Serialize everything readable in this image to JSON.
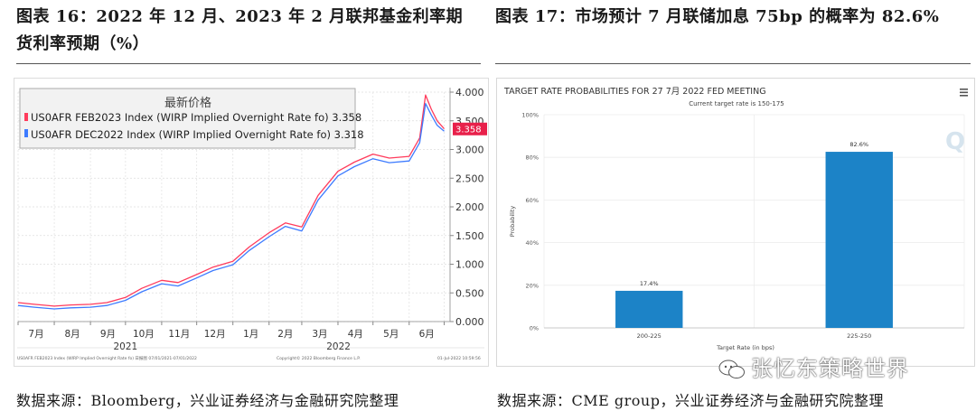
{
  "left_title": "图表 16：2022 年 12 月、2023 年 2 月联邦基金利率期货利率预期（%）",
  "right_title": "图表 17：市场预计 7 月联储加息 75bp 的概率为 82.6%",
  "left_source": "数据来源：Bloomberg，兴业证券经济与金融研究院整理",
  "right_source": "数据来源：CME group，兴业证券经济与金融研究院整理",
  "watermark": "张忆东策略世界",
  "left_chart_footer": {
    "left_text": "US0AFR FEB2023 Index (WIRP Implied Overnight Rate fo) 日报图 07/01/2021-07/01/2022",
    "middle_text": "Copyright© 2022 Bloomberg Finance L.P.",
    "right_text": "01-Jul-2022 10:59:56"
  },
  "chart_data": [
    {
      "type": "line",
      "legend_title": "最新价格",
      "legend_position": "top-left",
      "y_axis_side": "right",
      "ylim": [
        0,
        4.0
      ],
      "y_ticks": [
        "0.000",
        "0.500",
        "1.000",
        "1.500",
        "2.000",
        "2.500",
        "3.000",
        "3.500",
        "4.000"
      ],
      "x_month_labels": [
        "7月",
        "8月",
        "9月",
        "10月",
        "11月",
        "12月",
        "1月",
        "2月",
        "3月",
        "4月",
        "5月",
        "6月"
      ],
      "x_year_labels": [
        "2021",
        "2022"
      ],
      "grid": true,
      "last_value_marker": "3.358",
      "x_dates": [
        "2021-07-01",
        "2021-07-15",
        "2021-08-01",
        "2021-08-15",
        "2021-09-01",
        "2021-09-15",
        "2021-10-01",
        "2021-10-15",
        "2021-11-01",
        "2021-11-15",
        "2021-12-01",
        "2021-12-15",
        "2022-01-01",
        "2022-01-15",
        "2022-02-01",
        "2022-02-15",
        "2022-03-01",
        "2022-03-15",
        "2022-04-01",
        "2022-04-15",
        "2022-05-01",
        "2022-05-15",
        "2022-06-01",
        "2022-06-10",
        "2022-06-15",
        "2022-06-20",
        "2022-06-25",
        "2022-07-01"
      ],
      "series": [
        {
          "name": "US0AFR FEB2023 Index (WIRP Implied Overnight Rate fo) 3.358",
          "color": "#ff3b5c",
          "values": [
            0.33,
            0.3,
            0.27,
            0.29,
            0.3,
            0.33,
            0.42,
            0.58,
            0.72,
            0.68,
            0.82,
            0.95,
            1.05,
            1.3,
            1.55,
            1.72,
            1.65,
            2.2,
            2.62,
            2.78,
            2.92,
            2.85,
            2.88,
            3.2,
            3.95,
            3.7,
            3.5,
            3.36
          ]
        },
        {
          "name": "US0AFR DEC2022 Index (WIRP Implied Overnight Rate fo) 3.318",
          "color": "#3d7bff",
          "values": [
            0.28,
            0.25,
            0.22,
            0.24,
            0.25,
            0.28,
            0.37,
            0.52,
            0.66,
            0.62,
            0.76,
            0.89,
            0.99,
            1.24,
            1.48,
            1.66,
            1.58,
            2.12,
            2.54,
            2.7,
            2.84,
            2.77,
            2.8,
            3.12,
            3.8,
            3.6,
            3.42,
            3.32
          ]
        }
      ]
    },
    {
      "type": "bar",
      "title": "TARGET RATE PROBABILITIES FOR 27 7月 2022 FED MEETING",
      "subtitle": "Current target rate is 150-175",
      "menu_icon": "hamburger-menu-icon",
      "logo_letter": "Q",
      "xlabel": "Target Rate (in bps)",
      "ylabel": "Probability",
      "ylim": [
        0,
        100
      ],
      "y_ticks": [
        "0%",
        "20%",
        "40%",
        "60%",
        "80%",
        "100%"
      ],
      "categories": [
        "200-225",
        "225-250"
      ],
      "values": [
        17.4,
        82.6
      ],
      "data_labels": [
        "17.4%",
        "82.6%"
      ],
      "bar_color": "#1c83c7",
      "grid": true
    }
  ]
}
